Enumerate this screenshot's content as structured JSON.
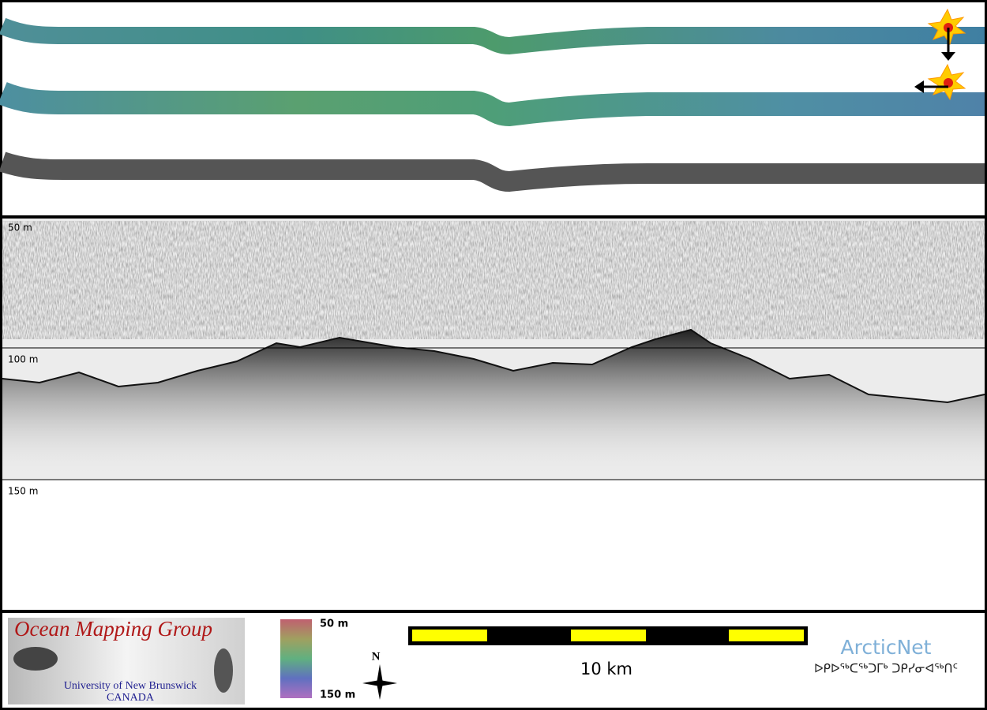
{
  "profile": {
    "depth_labels": [
      "50 m",
      "100 m",
      "150 m"
    ]
  },
  "logo": {
    "title": "Ocean Mapping Group",
    "university": "University of New Brunswick",
    "country": "CANADA"
  },
  "colorbar": {
    "top_label": "50 m",
    "bottom_label": "150 m"
  },
  "compass": {
    "label": "N"
  },
  "scale_bar": {
    "label": "10 km"
  },
  "arcticnet": {
    "name": "ArcticNet",
    "syllabics": "ᐅᑭᐅᖅᑕᖅᑐᒥᒃ ᑐᑭᓯᓂᐊᖅᑎᑦ"
  }
}
